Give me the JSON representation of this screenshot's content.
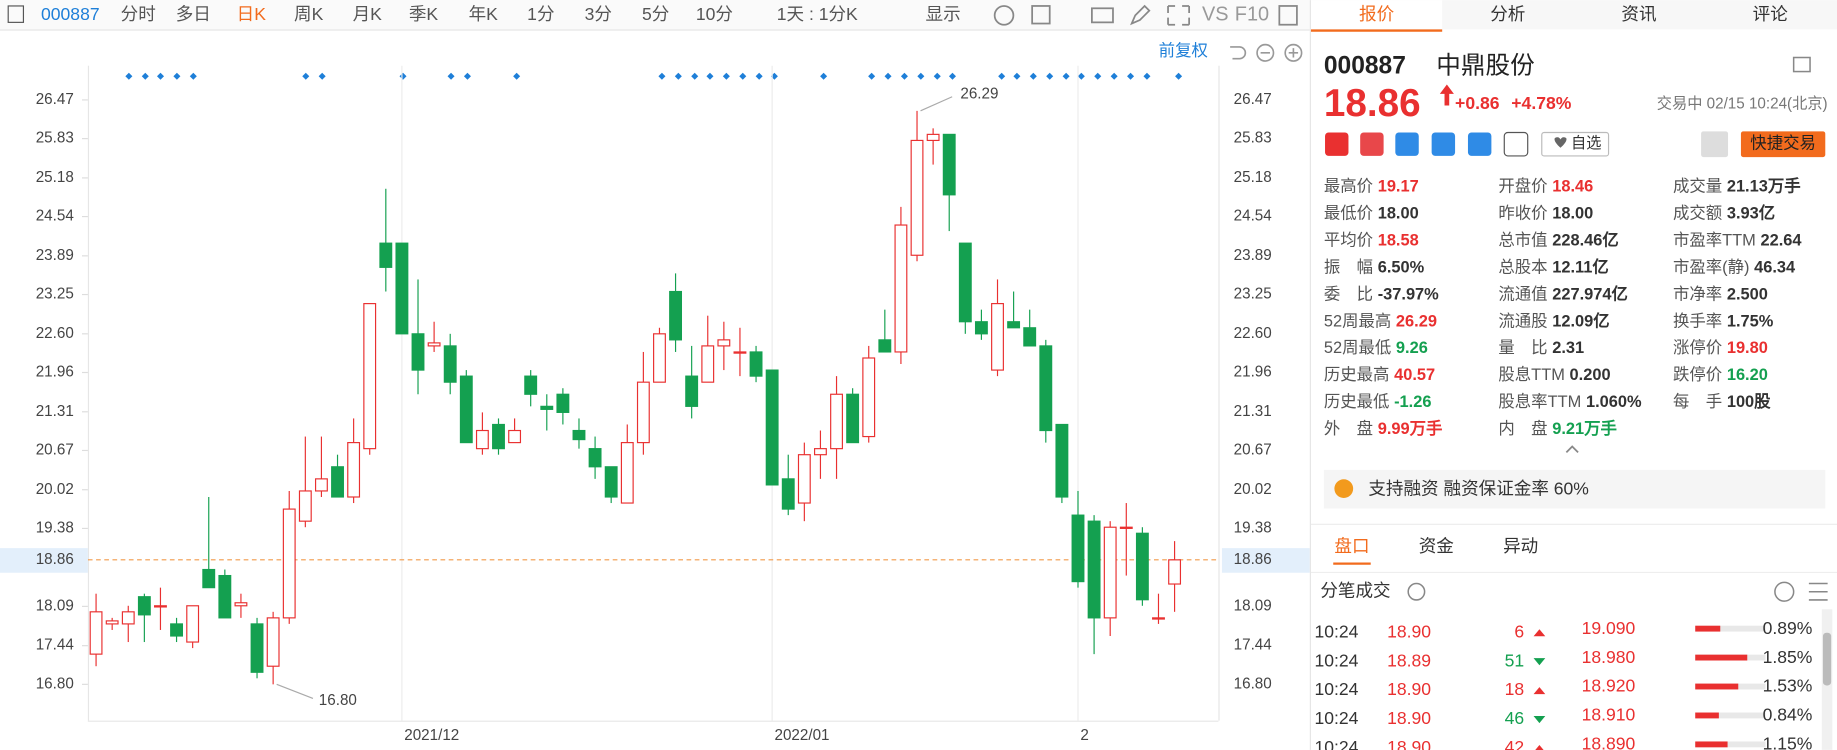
{
  "toolbar": {
    "code": "000887",
    "periods": [
      "分时",
      "多日",
      "日K",
      "周K",
      "月K",
      "季K",
      "年K",
      "1分",
      "3分",
      "5分",
      "10分"
    ],
    "interval": "1天 : 1分K",
    "display": "显示",
    "vs": "VS",
    "f10": "F10"
  },
  "chart_data": {
    "type": "candlestick",
    "adjust": "前复权",
    "categories": [
      null,
      null,
      null,
      null,
      null,
      null,
      null,
      null,
      null,
      null,
      null,
      null,
      null,
      null,
      null,
      null,
      null,
      null,
      null,
      "2021/12",
      null,
      null,
      null,
      null,
      null,
      null,
      null,
      null,
      null,
      null,
      null,
      null,
      null,
      null,
      null,
      null,
      null,
      null,
      null,
      null,
      null,
      null,
      "2022/01",
      null,
      null,
      null,
      null,
      null,
      null,
      null,
      null,
      null,
      null,
      null,
      null,
      null,
      null,
      null,
      null,
      null,
      null,
      "2",
      null,
      null,
      null,
      null,
      null,
      null
    ],
    "ohlc": [
      [
        17.3,
        18.3,
        17.1,
        18.0
      ],
      [
        17.8,
        17.9,
        17.7,
        17.85
      ],
      [
        17.8,
        18.1,
        17.5,
        18.0
      ],
      [
        18.25,
        18.3,
        17.5,
        17.95
      ],
      [
        18.1,
        18.4,
        17.7,
        18.1
      ],
      [
        17.8,
        17.9,
        17.5,
        17.6
      ],
      [
        17.5,
        18.1,
        17.4,
        18.1
      ],
      [
        18.7,
        19.9,
        18.4,
        18.4
      ],
      [
        18.6,
        18.7,
        17.9,
        17.9
      ],
      [
        18.1,
        18.3,
        17.9,
        18.15
      ],
      [
        17.8,
        17.9,
        16.9,
        17.0
      ],
      [
        17.1,
        18.0,
        16.8,
        17.9
      ],
      [
        17.9,
        20.0,
        17.8,
        19.7
      ],
      [
        19.5,
        20.9,
        19.4,
        20.0
      ],
      [
        20.0,
        20.9,
        19.9,
        20.2
      ],
      [
        20.4,
        20.6,
        19.9,
        19.9
      ],
      [
        19.9,
        21.2,
        19.8,
        20.8
      ],
      [
        20.7,
        23.1,
        20.6,
        23.1
      ],
      [
        24.1,
        25.0,
        23.3,
        23.7
      ],
      [
        24.1,
        24.1,
        22.6,
        22.6
      ],
      [
        22.6,
        23.5,
        21.6,
        22.0
      ],
      [
        22.4,
        22.8,
        22.3,
        22.45
      ],
      [
        22.4,
        22.6,
        21.6,
        21.8
      ],
      [
        21.9,
        22.0,
        20.8,
        20.8
      ],
      [
        20.7,
        21.3,
        20.6,
        21.0
      ],
      [
        21.1,
        21.2,
        20.6,
        20.7
      ],
      [
        20.8,
        21.2,
        20.8,
        21.0
      ],
      [
        21.9,
        22.0,
        21.4,
        21.6
      ],
      [
        21.4,
        21.6,
        21.0,
        21.35
      ],
      [
        21.6,
        21.7,
        21.1,
        21.3
      ],
      [
        21.0,
        21.2,
        20.7,
        20.85
      ],
      [
        20.7,
        20.9,
        20.2,
        20.4
      ],
      [
        20.4,
        20.4,
        19.8,
        19.9
      ],
      [
        19.8,
        21.1,
        19.8,
        20.8
      ],
      [
        20.8,
        22.3,
        20.6,
        21.8
      ],
      [
        21.8,
        22.7,
        21.8,
        22.6
      ],
      [
        23.3,
        23.6,
        22.3,
        22.5
      ],
      [
        21.9,
        22.4,
        21.2,
        21.4
      ],
      [
        21.8,
        22.9,
        21.8,
        22.4
      ],
      [
        22.4,
        22.8,
        22.0,
        22.5
      ],
      [
        22.3,
        22.7,
        21.9,
        22.3
      ],
      [
        22.3,
        22.4,
        21.8,
        21.9
      ],
      [
        22.0,
        22.0,
        20.1,
        20.1
      ],
      [
        20.2,
        20.6,
        19.6,
        19.7
      ],
      [
        19.8,
        20.8,
        19.5,
        20.6
      ],
      [
        20.6,
        21.0,
        20.2,
        20.7
      ],
      [
        20.7,
        21.9,
        20.2,
        21.6
      ],
      [
        21.6,
        21.7,
        20.8,
        20.8
      ],
      [
        20.9,
        22.4,
        20.8,
        22.2
      ],
      [
        22.5,
        23.0,
        22.3,
        22.3
      ],
      [
        22.3,
        24.7,
        22.1,
        24.4
      ],
      [
        23.9,
        26.29,
        23.8,
        25.8
      ],
      [
        25.8,
        26.0,
        25.4,
        25.9
      ],
      [
        25.9,
        25.9,
        24.3,
        24.9
      ],
      [
        24.1,
        24.1,
        22.6,
        22.8
      ],
      [
        22.8,
        23.0,
        22.5,
        22.6
      ],
      [
        22.0,
        23.5,
        21.9,
        23.1
      ],
      [
        22.8,
        23.3,
        22.7,
        22.7
      ],
      [
        22.7,
        23.0,
        22.4,
        22.4
      ],
      [
        22.4,
        22.5,
        20.8,
        21.0
      ],
      [
        21.1,
        21.1,
        19.8,
        19.9
      ],
      [
        19.6,
        20.0,
        18.4,
        18.5
      ],
      [
        19.5,
        19.6,
        17.3,
        17.9
      ],
      [
        17.9,
        19.5,
        17.6,
        19.4
      ],
      [
        19.4,
        19.8,
        18.6,
        19.4
      ],
      [
        19.3,
        19.4,
        18.1,
        18.2
      ],
      [
        17.9,
        18.3,
        17.8,
        17.9
      ],
      [
        18.46,
        19.17,
        18.0,
        18.86
      ]
    ],
    "up_color": "#e93030",
    "down_color": "#14a050",
    "ylim": [
      16.2,
      26.92
    ],
    "yticks": [
      {
        "value": 26.47,
        "label": "26.47"
      },
      {
        "value": 25.83,
        "label": "25.83"
      },
      {
        "value": 25.18,
        "label": "25.18"
      },
      {
        "value": 24.54,
        "label": "24.54"
      },
      {
        "value": 23.89,
        "label": "23.89"
      },
      {
        "value": 23.25,
        "label": "23.25"
      },
      {
        "value": 22.6,
        "label": "22.60"
      },
      {
        "value": 21.96,
        "label": "21.96"
      },
      {
        "value": 21.31,
        "label": "21.31"
      },
      {
        "value": 20.67,
        "label": "20.67"
      },
      {
        "value": 20.02,
        "label": "20.02"
      },
      {
        "value": 19.38,
        "label": "19.38"
      },
      {
        "value": 18.09,
        "label": "18.09"
      },
      {
        "value": 17.44,
        "label": "17.44"
      },
      {
        "value": 16.8,
        "label": "16.80"
      }
    ],
    "last": 18.86,
    "high_mark": {
      "index": 51,
      "label": "26.29"
    },
    "low_mark": {
      "index": 11,
      "label": "16.80"
    }
  },
  "quote": {
    "tabs": [
      "报价",
      "分析",
      "资讯",
      "评论"
    ],
    "code": "000887",
    "name": "中鼎股份",
    "price": "18.86",
    "change": "+0.86",
    "change_pct": "+4.78%",
    "status": "交易中 02/15 10:24(北京)",
    "watch": "自选",
    "quick_trade": "快捷交易",
    "stats": [
      [
        {
          "label": "最高价",
          "value": "19.17",
          "tone": "up"
        },
        {
          "label": "最低价",
          "value": "18.00",
          "tone": "plain"
        },
        {
          "label": "平均价",
          "value": "18.58",
          "tone": "up"
        },
        {
          "label": "振　幅",
          "value": "6.50%",
          "tone": "plain"
        },
        {
          "label": "委　比",
          "value": "-37.97%",
          "tone": "plain"
        },
        {
          "label": "52周最高",
          "value": "26.29",
          "tone": "up"
        },
        {
          "label": "52周最低",
          "value": "9.26",
          "tone": "down"
        },
        {
          "label": "历史最高",
          "value": "40.57",
          "tone": "up"
        },
        {
          "label": "历史最低",
          "value": "-1.26",
          "tone": "down"
        },
        {
          "label": "外　盘",
          "value": "9.99万手",
          "tone": "up"
        }
      ],
      [
        {
          "label": "开盘价",
          "value": "18.46",
          "tone": "up"
        },
        {
          "label": "昨收价",
          "value": "18.00",
          "tone": "plain"
        },
        {
          "label": "总市值",
          "value": "228.46亿",
          "tone": "plain"
        },
        {
          "label": "总股本",
          "value": "12.11亿",
          "tone": "plain"
        },
        {
          "label": "流通值",
          "value": "227.974亿",
          "tone": "plain"
        },
        {
          "label": "流通股",
          "value": "12.09亿",
          "tone": "plain"
        },
        {
          "label": "量　比",
          "value": "2.31",
          "tone": "plain"
        },
        {
          "label": "股息TTM",
          "value": "0.200",
          "tone": "plain"
        },
        {
          "label": "股息率TTM",
          "value": "1.060%",
          "tone": "plain"
        },
        {
          "label": "内　盘",
          "value": "9.21万手",
          "tone": "down"
        }
      ],
      [
        {
          "label": "成交量",
          "value": "21.13万手",
          "tone": "plain"
        },
        {
          "label": "成交额",
          "value": "3.93亿",
          "tone": "plain"
        },
        {
          "label": "市盈率TTM",
          "value": "22.64",
          "tone": "plain"
        },
        {
          "label": "市盈率(静)",
          "value": "46.34",
          "tone": "plain"
        },
        {
          "label": "市净率",
          "value": "2.500",
          "tone": "plain"
        },
        {
          "label": "换手率",
          "value": "1.75%",
          "tone": "plain"
        },
        {
          "label": "涨停价",
          "value": "19.80",
          "tone": "up"
        },
        {
          "label": "跌停价",
          "value": "16.20",
          "tone": "down"
        },
        {
          "label": "每　手",
          "value": "100股",
          "tone": "plain"
        }
      ]
    ],
    "margin": "支持融资 融资保证金率 60%"
  },
  "sections": [
    "盘口",
    "资金",
    "异动"
  ],
  "trades": {
    "title": "分笔成交",
    "rows": [
      {
        "time": "10:24",
        "price": "18.90",
        "volume": 6,
        "side": "buy",
        "level": "19.090",
        "pct": 0.89,
        "pct_label": "0.89%"
      },
      {
        "time": "10:24",
        "price": "18.89",
        "volume": 51,
        "side": "sell",
        "level": "18.980",
        "pct": 1.85,
        "pct_label": "1.85%"
      },
      {
        "time": "10:24",
        "price": "18.90",
        "volume": 18,
        "side": "buy",
        "level": "18.920",
        "pct": 1.53,
        "pct_label": "1.53%"
      },
      {
        "time": "10:24",
        "price": "18.90",
        "volume": 46,
        "side": "sell",
        "level": "18.910",
        "pct": 0.84,
        "pct_label": "0.84%"
      },
      {
        "time": "10:24",
        "price": "18.90",
        "volume": 42,
        "side": "buy",
        "level": "18.890",
        "pct": 1.15,
        "pct_label": "1.15%"
      }
    ]
  }
}
